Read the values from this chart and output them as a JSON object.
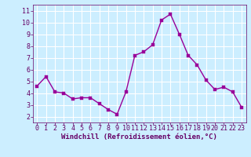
{
  "x": [
    0,
    1,
    2,
    3,
    4,
    5,
    6,
    7,
    8,
    9,
    10,
    11,
    12,
    13,
    14,
    15,
    16,
    17,
    18,
    19,
    20,
    21,
    22,
    23
  ],
  "y": [
    4.6,
    5.4,
    4.1,
    4.0,
    3.5,
    3.6,
    3.6,
    3.1,
    2.6,
    2.2,
    4.1,
    7.2,
    7.5,
    8.1,
    10.2,
    10.7,
    9.0,
    7.2,
    6.4,
    5.1,
    4.3,
    4.5,
    4.1,
    2.8
  ],
  "line_color": "#990099",
  "marker_color": "#990099",
  "bg_color": "#cceeff",
  "grid_color": "#aaddcc",
  "xlabel": "Windchill (Refroidissement éolien,°C)",
  "xlabel_color": "#660066",
  "tick_color": "#660066",
  "ylim": [
    1.5,
    11.5
  ],
  "xlim": [
    -0.5,
    23.5
  ],
  "yticks": [
    2,
    3,
    4,
    5,
    6,
    7,
    8,
    9,
    10,
    11
  ],
  "xticks": [
    0,
    1,
    2,
    3,
    4,
    5,
    6,
    7,
    8,
    9,
    10,
    11,
    12,
    13,
    14,
    15,
    16,
    17,
    18,
    19,
    20,
    21,
    22,
    23
  ],
  "line_width": 1.0,
  "marker_size": 2.5,
  "tick_fontsize": 6.0,
  "xlabel_fontsize": 6.5
}
